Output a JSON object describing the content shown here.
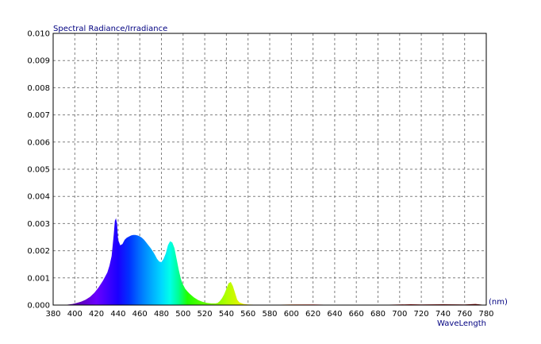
{
  "chart_data": {
    "type": "area",
    "title": "Spectral Radiance/Irradiance",
    "xlabel": "WaveLength",
    "xunit": "(nm)",
    "ylabel": "",
    "xlim": [
      380,
      780
    ],
    "ylim": [
      0,
      0.01
    ],
    "xticks": [
      "380",
      "400",
      "420",
      "440",
      "460",
      "480",
      "500",
      "520",
      "540",
      "560",
      "580",
      "600",
      "620",
      "640",
      "660",
      "680",
      "700",
      "720",
      "740",
      "760",
      "780"
    ],
    "yticks": [
      "0.000",
      "0.001",
      "0.002",
      "0.003",
      "0.004",
      "0.005",
      "0.006",
      "0.007",
      "0.008",
      "0.009",
      "0.010"
    ],
    "grid": true,
    "fill": "spectral-gradient",
    "series": [
      {
        "x": [
          390,
          398,
          402,
          406,
          410,
          414,
          418,
          422,
          426,
          430,
          432,
          434,
          436,
          437,
          438,
          439,
          440,
          442,
          444,
          446,
          448,
          450,
          452,
          454,
          456,
          458,
          460,
          462,
          464,
          466,
          468,
          470,
          472,
          474,
          476,
          478,
          480,
          482,
          484,
          486,
          488,
          490,
          492,
          494,
          496,
          498,
          500,
          502,
          504,
          506,
          508,
          510,
          514,
          518,
          522,
          526,
          530,
          532,
          534,
          536,
          538,
          540,
          542,
          544,
          546,
          548,
          550,
          552,
          556,
          560,
          570,
          580,
          600,
          620,
          640,
          660,
          680,
          700,
          710,
          720,
          740,
          760,
          770,
          780
        ],
        "y": [
          0,
          4e-05,
          8e-05,
          0.00013,
          0.0002,
          0.0003,
          0.00045,
          0.00065,
          0.0009,
          0.0012,
          0.00145,
          0.0018,
          0.0026,
          0.0031,
          0.0032,
          0.003,
          0.0024,
          0.0022,
          0.00225,
          0.0024,
          0.00248,
          0.00252,
          0.00256,
          0.00258,
          0.00258,
          0.00256,
          0.00253,
          0.00248,
          0.0024,
          0.0023,
          0.0022,
          0.0021,
          0.00198,
          0.00185,
          0.0017,
          0.0016,
          0.00158,
          0.0017,
          0.0019,
          0.0022,
          0.00235,
          0.0023,
          0.0021,
          0.0017,
          0.0013,
          0.00095,
          0.00075,
          0.0006,
          0.0005,
          0.00042,
          0.00035,
          0.00028,
          0.00018,
          0.00012,
          8e-05,
          6e-05,
          6e-05,
          8e-05,
          0.00015,
          0.00025,
          0.0004,
          0.0006,
          0.0008,
          0.00085,
          0.0007,
          0.00045,
          0.0002,
          0.0001,
          4e-05,
          2e-05,
          1e-05,
          1e-05,
          2e-05,
          2e-05,
          1e-05,
          1e-05,
          1e-05,
          2e-05,
          3e-05,
          2e-05,
          3e-05,
          2e-05,
          4e-05,
          0
        ]
      }
    ]
  }
}
